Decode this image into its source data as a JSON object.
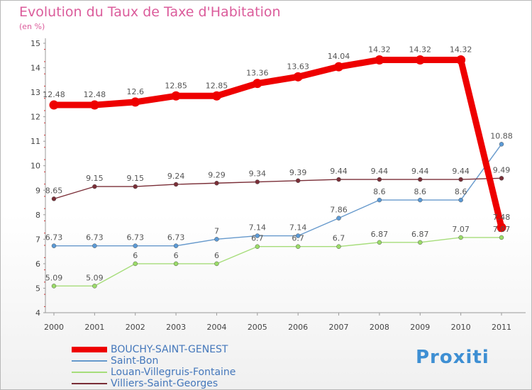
{
  "title": "Evolution du Taux de Taxe d'Habitation",
  "subtitle": "(en %)",
  "brand": "Proxiti",
  "chart_data": {
    "type": "line",
    "x": [
      "2000",
      "2001",
      "2002",
      "2003",
      "2004",
      "2005",
      "2006",
      "2007",
      "2008",
      "2009",
      "2010",
      "2011"
    ],
    "ylim": [
      4,
      15
    ],
    "yticks": [
      4,
      5,
      6,
      7,
      8,
      9,
      10,
      11,
      12,
      13,
      14,
      15
    ],
    "grid": false,
    "legend_position": "bottom-left",
    "series": [
      {
        "name": "BOUCHY-SAINT-GENEST",
        "color": "#ee0000",
        "marker_color": "#ee0000",
        "emphasis": "thick",
        "values": [
          12.48,
          12.48,
          12.6,
          12.85,
          12.85,
          13.36,
          13.63,
          14.04,
          14.32,
          14.32,
          14.32,
          7.48
        ],
        "labels": [
          "12.48",
          "12.48",
          "12.6",
          "12.85",
          "12.85",
          "13.36",
          "13.63",
          "14.04",
          "14.32",
          "14.32",
          "14.32",
          "7.48"
        ]
      },
      {
        "name": "Saint-Bon",
        "color": "#6699cc",
        "marker_color": "#5b9ad6",
        "emphasis": "thin",
        "values": [
          6.73,
          6.73,
          6.73,
          6.73,
          7,
          7.14,
          7.14,
          7.86,
          8.6,
          8.6,
          8.6,
          10.88
        ],
        "labels": [
          "6.73",
          "6.73",
          "6.73",
          "6.73",
          "7",
          "7.14",
          "7.14",
          "7.86",
          "8.6",
          "8.6",
          "8.6",
          "10.88"
        ]
      },
      {
        "name": "Louan-Villegruis-Fontaine",
        "color": "#a6dd7a",
        "marker_color": "#9bdc68",
        "emphasis": "thin",
        "values": [
          5.09,
          5.09,
          6,
          6,
          6,
          6.7,
          6.7,
          6.7,
          6.87,
          6.87,
          7.07,
          7.07
        ],
        "labels": [
          "5.09",
          "5.09",
          "6",
          "6",
          "6",
          "6.7",
          "6.7",
          "6.7",
          "6.87",
          "6.87",
          "7.07",
          "7.07"
        ]
      },
      {
        "name": "Villiers-Saint-Georges",
        "color": "#7a2e37",
        "marker_color": "#7a2e37",
        "emphasis": "thin",
        "values": [
          8.65,
          9.15,
          9.15,
          9.24,
          9.29,
          9.34,
          9.39,
          9.44,
          9.44,
          9.44,
          9.44,
          9.49
        ],
        "labels": [
          "8.65",
          "9.15",
          "9.15",
          "9.24",
          "9.29",
          "9.34",
          "9.39",
          "9.44",
          "9.44",
          "9.44",
          "9.44",
          "9.49"
        ]
      }
    ]
  }
}
